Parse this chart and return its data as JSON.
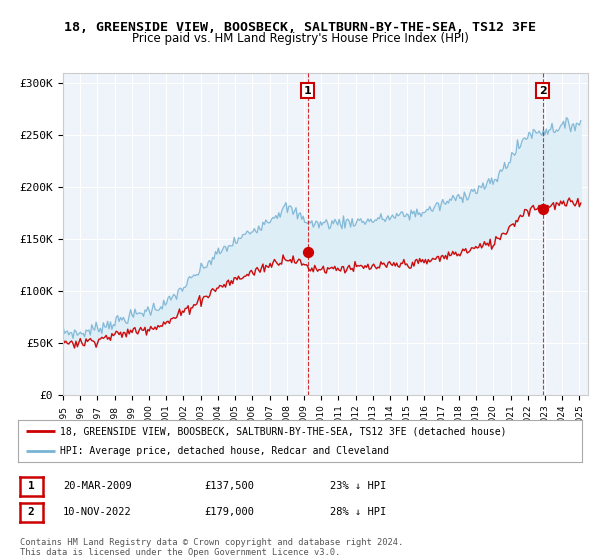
{
  "title1": "18, GREENSIDE VIEW, BOOSBECK, SALTBURN-BY-THE-SEA, TS12 3FE",
  "title2": "Price paid vs. HM Land Registry's House Price Index (HPI)",
  "ylabel_ticks": [
    "£0",
    "£50K",
    "£100K",
    "£150K",
    "£200K",
    "£250K",
    "£300K"
  ],
  "ytick_values": [
    0,
    50000,
    100000,
    150000,
    200000,
    250000,
    300000
  ],
  "ylim": [
    0,
    310000
  ],
  "legend_line1": "18, GREENSIDE VIEW, BOOSBECK, SALTBURN-BY-THE-SEA, TS12 3FE (detached house)",
  "legend_line2": "HPI: Average price, detached house, Redcar and Cleveland",
  "point1_label": "1",
  "point1_date": "20-MAR-2009",
  "point1_price": "£137,500",
  "point1_hpi": "23% ↓ HPI",
  "point1_year": 2009.22,
  "point1_value": 137500,
  "point2_label": "2",
  "point2_date": "10-NOV-2022",
  "point2_price": "£179,000",
  "point2_hpi": "28% ↓ HPI",
  "point2_year": 2022.86,
  "point2_value": 179000,
  "copyright": "Contains HM Land Registry data © Crown copyright and database right 2024.\nThis data is licensed under the Open Government Licence v3.0.",
  "hpi_color": "#7ab3d4",
  "hpi_fill_color": "#ddeef7",
  "price_color": "#cc0000",
  "vline_color": "#cc0000",
  "bg_color": "#eef4fa",
  "grid_color": "#ffffff"
}
